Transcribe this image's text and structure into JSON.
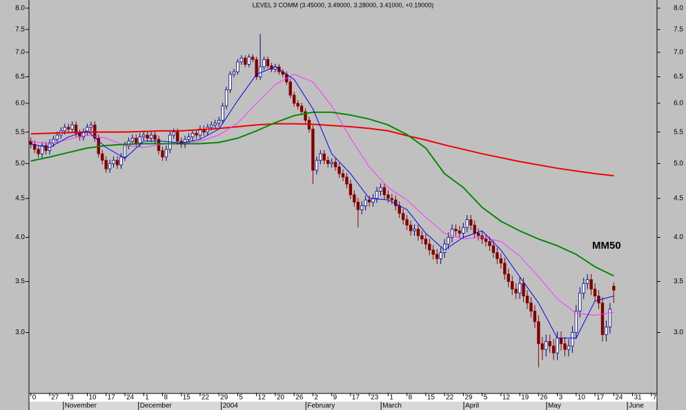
{
  "chart_data": {
    "type": "candlestick",
    "title": "LEVEL 3 COMM (3.45000, 3.49000, 3.28000, 3.41000, +0.19000)",
    "annotation": "MM50",
    "log_scale": true,
    "up_color": "#000080",
    "down_color": "#800000",
    "xlim": [
      -0.5,
      166.5
    ],
    "ylim": [
      2.5,
      8.2
    ],
    "yticks": [
      {
        "value": 3,
        "label": "3.0"
      },
      3.5,
      {
        "value": 4,
        "label": "4.0"
      },
      4.5,
      {
        "value": 5,
        "label": "5.0"
      },
      5.5,
      {
        "value": 6,
        "label": "6.0"
      },
      6.5,
      {
        "value": 7,
        "label": "7.0"
      },
      7.5,
      {
        "value": 8,
        "label": "8.0"
      }
    ],
    "xticks": [
      {
        "value": 0,
        "label": "0"
      },
      {
        "value": 5,
        "label": "27"
      },
      {
        "value": 10,
        "label": "3"
      },
      {
        "value": 15,
        "label": "10"
      },
      {
        "value": 20,
        "label": "17"
      },
      {
        "value": 25,
        "label": "24"
      },
      {
        "value": 30,
        "label": "1"
      },
      {
        "value": 35,
        "label": "8"
      },
      {
        "value": 40,
        "label": "15"
      },
      {
        "value": 45,
        "label": "22"
      },
      {
        "value": 50,
        "label": "29"
      },
      {
        "value": 55,
        "label": "5"
      },
      {
        "value": 60,
        "label": "12"
      },
      {
        "value": 65,
        "label": "20"
      },
      {
        "value": 70,
        "label": "26"
      },
      {
        "value": 75,
        "label": "2"
      },
      {
        "value": 80,
        "label": "9"
      },
      {
        "value": 85,
        "label": "17"
      },
      {
        "value": 90,
        "label": "23"
      },
      {
        "value": 95,
        "label": "1"
      },
      {
        "value": 100,
        "label": "8"
      },
      {
        "value": 105,
        "label": "15"
      },
      {
        "value": 110,
        "label": "22"
      },
      {
        "value": 115,
        "label": "29"
      },
      {
        "value": 120,
        "label": "5"
      },
      {
        "value": 125,
        "label": "12"
      },
      {
        "value": 130,
        "label": "19"
      },
      {
        "value": 135,
        "label": "26"
      },
      {
        "value": 140,
        "label": "3"
      },
      {
        "value": 145,
        "label": "10"
      },
      {
        "value": 150,
        "label": "17"
      },
      {
        "value": 155,
        "label": "24"
      },
      {
        "value": 160,
        "label": "31"
      },
      {
        "value": 165,
        "label": "7"
      }
    ],
    "month_labels": [
      {
        "value": 9,
        "label": "November"
      },
      {
        "value": 29,
        "label": "December"
      },
      {
        "value": 51,
        "label": "2004"
      },
      {
        "value": 73.5,
        "label": "February"
      },
      {
        "value": 93.5,
        "label": "March"
      },
      {
        "value": 115.5,
        "label": "April"
      },
      {
        "value": 137.5,
        "label": "May"
      },
      {
        "value": 159,
        "label": "June"
      }
    ],
    "open": [
      5.35,
      5.3,
      5.22,
      5.15,
      5.28,
      5.2,
      5.32,
      5.38,
      5.45,
      5.52,
      5.58,
      5.55,
      5.62,
      5.48,
      5.42,
      5.5,
      5.58,
      5.62,
      5.4,
      5.15,
      5.05,
      4.92,
      5.0,
      5.05,
      4.98,
      5.1,
      5.28,
      5.35,
      5.4,
      5.32,
      5.42,
      5.45,
      5.4,
      5.45,
      5.38,
      5.2,
      5.1,
      5.22,
      5.45,
      5.5,
      5.35,
      5.3,
      5.38,
      5.42,
      5.48,
      5.45,
      5.55,
      5.5,
      5.58,
      5.62,
      5.65,
      5.7,
      5.95,
      6.25,
      6.55,
      6.6,
      6.8,
      6.88,
      6.75,
      6.9,
      6.85,
      6.5,
      6.7,
      6.85,
      6.72,
      6.65,
      6.7,
      6.6,
      6.55,
      6.4,
      6.15,
      6.0,
      5.95,
      5.85,
      5.7,
      5.55,
      4.9,
      5.05,
      5.15,
      5.05,
      5.0,
      5.02,
      4.95,
      4.85,
      4.8,
      4.7,
      4.55,
      4.45,
      4.35,
      4.4,
      4.48,
      4.45,
      4.5,
      4.6,
      4.65,
      4.55,
      4.5,
      4.48,
      4.4,
      4.3,
      4.22,
      4.15,
      4.08,
      4.1,
      4.02,
      3.98,
      3.92,
      3.85,
      3.8,
      3.75,
      3.82,
      3.92,
      4.0,
      4.1,
      4.08,
      4.05,
      4.12,
      4.22,
      4.15,
      4.05,
      4.02,
      3.98,
      3.95,
      3.9,
      3.82,
      3.75,
      3.7,
      3.58,
      3.5,
      3.42,
      3.38,
      3.48,
      3.35,
      3.28,
      3.2,
      3.1,
      2.9,
      2.85,
      2.92,
      2.88,
      2.82,
      2.95,
      2.9,
      2.85,
      2.88,
      3.0,
      3.2,
      3.38,
      3.48,
      3.52,
      3.42,
      3.35,
      3.28,
      2.98,
      3.05,
      3.45
    ],
    "high": [
      5.41,
      5.36,
      5.28,
      5.34,
      5.34,
      5.38,
      5.44,
      5.51,
      5.58,
      5.64,
      5.64,
      5.68,
      5.68,
      5.54,
      5.56,
      5.64,
      5.68,
      5.68,
      5.46,
      5.21,
      5.11,
      5.06,
      5.11,
      5.11,
      5.16,
      5.34,
      5.41,
      5.46,
      5.46,
      5.48,
      5.51,
      5.51,
      5.51,
      5.51,
      5.44,
      5.26,
      5.28,
      5.51,
      5.56,
      5.56,
      5.41,
      5.44,
      5.48,
      5.54,
      5.54,
      5.61,
      5.61,
      5.64,
      5.68,
      5.71,
      5.76,
      6.01,
      6.31,
      6.61,
      6.66,
      6.86,
      6.94,
      6.94,
      6.96,
      6.96,
      6.91,
      7.4,
      6.91,
      6.91,
      6.78,
      6.76,
      6.76,
      6.66,
      6.61,
      6.46,
      6.21,
      6.06,
      6.01,
      5.91,
      5.76,
      5.61,
      5.11,
      5.21,
      5.21,
      5.11,
      5.08,
      5.08,
      5.01,
      4.91,
      4.86,
      4.76,
      4.61,
      4.51,
      4.46,
      4.54,
      4.54,
      4.56,
      4.66,
      4.71,
      4.71,
      4.61,
      4.56,
      4.54,
      4.46,
      4.36,
      4.28,
      4.21,
      4.16,
      4.16,
      4.08,
      4.04,
      3.98,
      3.91,
      3.86,
      3.88,
      3.98,
      4.06,
      4.16,
      4.16,
      4.14,
      4.18,
      4.28,
      4.28,
      4.21,
      4.11,
      4.08,
      4.04,
      4.01,
      3.96,
      3.88,
      3.81,
      3.76,
      3.64,
      3.56,
      3.48,
      3.54,
      3.54,
      3.41,
      3.34,
      3.26,
      3.16,
      2.96,
      2.98,
      2.98,
      2.94,
      3.01,
      3.01,
      2.96,
      2.94,
      3.06,
      3.26,
      3.44,
      3.54,
      3.58,
      3.58,
      3.48,
      3.41,
      3.34,
      3.11,
      3.28,
      3.49
    ],
    "low": [
      5.24,
      5.16,
      5.09,
      5.09,
      5.14,
      5.14,
      5.26,
      5.32,
      5.39,
      5.46,
      5.49,
      5.49,
      5.42,
      5.36,
      5.36,
      5.44,
      5.52,
      5.34,
      5.09,
      4.99,
      4.86,
      4.86,
      4.94,
      4.92,
      4.92,
      5.04,
      5.22,
      5.29,
      5.26,
      5.26,
      5.36,
      5.34,
      5.34,
      5.32,
      5.14,
      5.04,
      5.04,
      5.16,
      5.39,
      5.29,
      5.24,
      5.24,
      5.32,
      5.36,
      5.39,
      5.39,
      5.44,
      5.44,
      5.52,
      5.56,
      5.59,
      5.64,
      5.89,
      6.19,
      6.49,
      6.54,
      6.74,
      6.69,
      6.69,
      6.79,
      6.44,
      6.44,
      6.64,
      6.66,
      6.59,
      6.59,
      6.54,
      6.49,
      6.34,
      6.09,
      5.94,
      5.89,
      5.79,
      5.64,
      5.49,
      4.7,
      4.84,
      4.99,
      4.99,
      4.94,
      4.94,
      4.89,
      4.79,
      4.74,
      4.64,
      4.49,
      4.39,
      4.12,
      4.29,
      4.34,
      4.39,
      4.39,
      4.44,
      4.54,
      4.49,
      4.44,
      4.42,
      4.34,
      4.24,
      4.16,
      4.09,
      4.02,
      4.02,
      3.96,
      3.92,
      3.86,
      3.79,
      3.74,
      3.69,
      3.69,
      3.76,
      3.86,
      3.94,
      4.02,
      3.99,
      3.99,
      4.06,
      4.09,
      3.99,
      3.96,
      3.92,
      3.89,
      3.84,
      3.76,
      3.69,
      3.64,
      3.52,
      3.44,
      3.36,
      3.32,
      3.32,
      3.29,
      3.22,
      3.14,
      3.04,
      2.7,
      2.76,
      2.79,
      2.82,
      2.76,
      2.76,
      2.84,
      2.79,
      2.79,
      2.82,
      2.94,
      3.14,
      3.32,
      3.42,
      3.36,
      3.29,
      3.22,
      2.92,
      2.92,
      2.99,
      3.28
    ],
    "close": [
      5.3,
      5.22,
      5.15,
      5.28,
      5.2,
      5.32,
      5.38,
      5.45,
      5.52,
      5.58,
      5.55,
      5.62,
      5.48,
      5.42,
      5.5,
      5.58,
      5.62,
      5.4,
      5.15,
      5.05,
      4.92,
      5.0,
      5.05,
      4.98,
      5.1,
      5.28,
      5.35,
      5.4,
      5.32,
      5.42,
      5.45,
      5.4,
      5.45,
      5.38,
      5.2,
      5.1,
      5.22,
      5.45,
      5.5,
      5.35,
      5.3,
      5.38,
      5.42,
      5.48,
      5.45,
      5.55,
      5.5,
      5.58,
      5.62,
      5.65,
      5.7,
      5.95,
      6.25,
      6.55,
      6.6,
      6.8,
      6.88,
      6.75,
      6.9,
      6.85,
      6.5,
      6.7,
      6.85,
      6.72,
      6.65,
      6.7,
      6.6,
      6.55,
      6.4,
      6.15,
      6.0,
      5.95,
      5.85,
      5.7,
      5.55,
      4.9,
      5.05,
      5.15,
      5.05,
      5.0,
      5.02,
      4.95,
      4.85,
      4.8,
      4.7,
      4.55,
      4.45,
      4.35,
      4.4,
      4.48,
      4.45,
      4.5,
      4.6,
      4.65,
      4.55,
      4.5,
      4.48,
      4.4,
      4.3,
      4.22,
      4.15,
      4.08,
      4.1,
      4.02,
      3.98,
      3.92,
      3.85,
      3.8,
      3.75,
      3.82,
      3.92,
      4.0,
      4.1,
      4.08,
      4.05,
      4.12,
      4.22,
      4.15,
      4.05,
      4.02,
      3.98,
      3.95,
      3.9,
      3.82,
      3.75,
      3.7,
      3.58,
      3.5,
      3.42,
      3.38,
      3.48,
      3.35,
      3.28,
      3.2,
      3.1,
      2.9,
      2.85,
      2.92,
      2.88,
      2.82,
      2.95,
      2.9,
      2.85,
      2.88,
      3.0,
      3.2,
      3.38,
      3.48,
      3.52,
      3.42,
      3.35,
      3.28,
      2.98,
      3.05,
      3.22,
      3.41
    ],
    "line_x": [
      0,
      5,
      10,
      15,
      20,
      25,
      30,
      35,
      40,
      45,
      50,
      55,
      60,
      65,
      70,
      75,
      80,
      85,
      90,
      95,
      100,
      105,
      110,
      115,
      120,
      125,
      130,
      135,
      140,
      145,
      150,
      155
    ],
    "lines": [
      {
        "color": "#ee0000",
        "values": [
          5.47,
          5.48,
          5.49,
          5.5,
          5.5,
          5.5,
          5.51,
          5.52,
          5.52,
          5.54,
          5.56,
          5.59,
          5.62,
          5.64,
          5.64,
          5.63,
          5.61,
          5.59,
          5.56,
          5.52,
          5.44,
          5.37,
          5.29,
          5.22,
          5.15,
          5.09,
          5.03,
          4.98,
          4.93,
          4.89,
          4.85,
          4.82
        ]
      },
      {
        "color": "#ff33ff",
        "values": [
          5.35,
          5.3,
          5.38,
          5.45,
          5.4,
          5.28,
          5.25,
          5.3,
          5.32,
          5.35,
          5.45,
          5.65,
          6.0,
          6.35,
          6.55,
          6.4,
          5.95,
          5.4,
          4.95,
          4.65,
          4.48,
          4.25,
          4.05,
          3.98,
          4.0,
          3.95,
          3.78,
          3.55,
          3.32,
          3.18,
          3.16,
          3.19
        ]
      },
      {
        "color": "#008800",
        "values": [
          5.04,
          5.1,
          5.17,
          5.24,
          5.28,
          5.3,
          5.31,
          5.31,
          5.31,
          5.31,
          5.33,
          5.4,
          5.52,
          5.66,
          5.78,
          5.84,
          5.84,
          5.79,
          5.72,
          5.62,
          5.46,
          5.24,
          4.85,
          4.65,
          4.38,
          4.2,
          4.08,
          3.98,
          3.9,
          3.8,
          3.66,
          3.56
        ]
      },
      {
        "color": "#0000ee",
        "values": [
          5.3,
          5.25,
          5.42,
          5.52,
          5.25,
          5.08,
          5.35,
          5.35,
          5.32,
          5.38,
          5.55,
          6.05,
          6.55,
          6.7,
          6.45,
          5.9,
          5.15,
          4.85,
          4.5,
          4.48,
          4.35,
          4.05,
          3.85,
          4.0,
          4.08,
          3.85,
          3.55,
          3.28,
          2.95,
          2.95,
          3.3,
          3.35
        ]
      }
    ]
  }
}
